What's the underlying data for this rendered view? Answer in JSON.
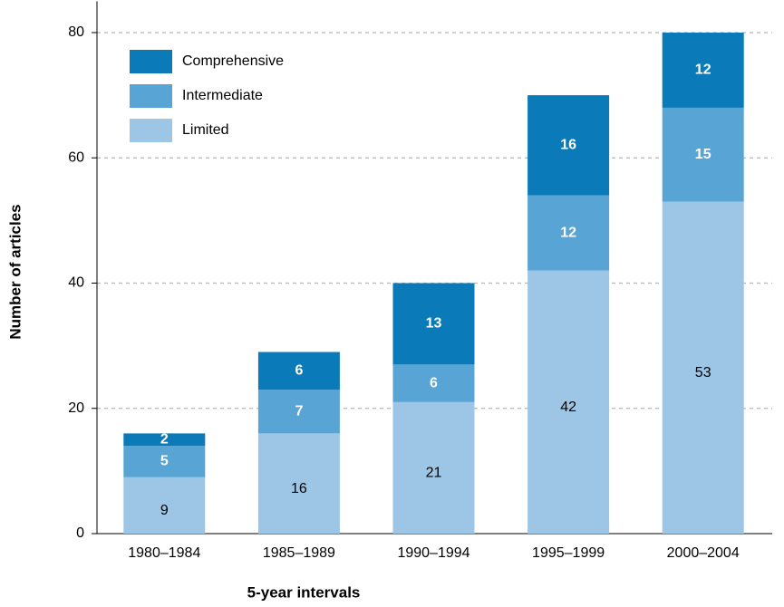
{
  "chart_data": {
    "type": "stacked_bar",
    "categories": [
      "1980–1984",
      "1985–1989",
      "1990–1994",
      "1995–1999",
      "2000–2004"
    ],
    "series": [
      {
        "name": "Limited",
        "color": "#9dc6e6",
        "values": [
          9,
          16,
          21,
          42,
          53
        ]
      },
      {
        "name": "Intermediate",
        "color": "#58a5d5",
        "values": [
          5,
          7,
          6,
          12,
          15
        ]
      },
      {
        "name": "Comprehensive",
        "color": "#0a7bb8",
        "values": [
          2,
          6,
          13,
          16,
          12
        ]
      }
    ],
    "xlabel": "5-year intervals",
    "ylabel": "Number of articles",
    "ylim": [
      0,
      85
    ],
    "yticks": [
      0,
      20,
      40,
      60,
      80
    ],
    "grid": true,
    "legend": "top-left"
  }
}
